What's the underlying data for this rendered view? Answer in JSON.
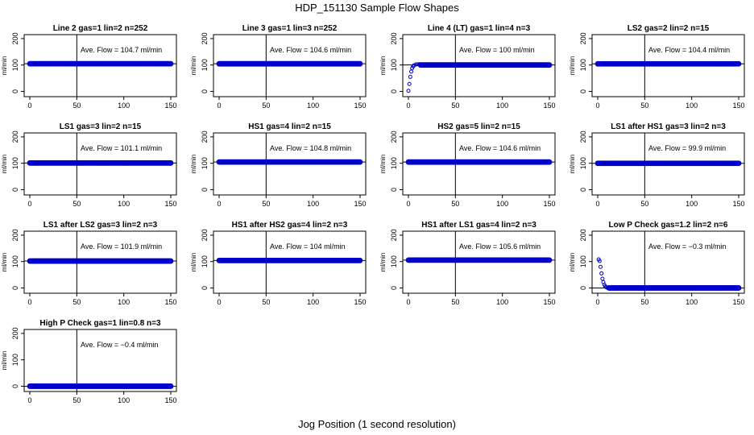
{
  "figure": {
    "title": "HDP_151130  Sample Flow Shapes",
    "xlabel": "Jog Position (1 second resolution)",
    "point_color": "#0000cc"
  },
  "chart_data": [
    {
      "type": "scatter",
      "title": "Line 2 gas=1 lin=2 n=252",
      "ylabel": "ml/min",
      "annotation": "Ave. Flow =  104.7  ml/min",
      "xlim": [
        0,
        150
      ],
      "ylim": [
        -20,
        215
      ],
      "xticks": [
        0,
        50,
        100,
        150
      ],
      "yticks": [
        0,
        100,
        200
      ],
      "vline_x": 50,
      "hline_y": 104.7,
      "series": [
        {
          "shape": "flat",
          "level": 104.7,
          "x": [
            0,
            150
          ]
        }
      ]
    },
    {
      "type": "scatter",
      "title": "Line 3 gas=1 lin=3 n=252",
      "ylabel": "ml/min",
      "annotation": "Ave. Flow =  104.6  ml/min",
      "xlim": [
        0,
        150
      ],
      "ylim": [
        -20,
        215
      ],
      "xticks": [
        0,
        50,
        100,
        150
      ],
      "yticks": [
        0,
        100,
        200
      ],
      "vline_x": 50,
      "hline_y": 104.6,
      "series": [
        {
          "shape": "flat",
          "level": 104.6,
          "x": [
            0,
            150
          ]
        }
      ]
    },
    {
      "type": "scatter",
      "title": "Line 4 (LT) gas=1 lin=4 n=3",
      "ylabel": "ml/min",
      "annotation": "Ave. Flow =  100  ml/min",
      "xlim": [
        0,
        150
      ],
      "ylim": [
        -20,
        215
      ],
      "xticks": [
        0,
        50,
        100,
        150
      ],
      "yticks": [
        0,
        100,
        200
      ],
      "vline_x": 50,
      "hline_y": 100,
      "series": [
        {
          "shape": "rise",
          "level": 100,
          "x": [
            0,
            150
          ],
          "start_points": [
            [
              0,
              2
            ],
            [
              1,
              28
            ],
            [
              2,
              55
            ],
            [
              3,
              75
            ],
            [
              4,
              88
            ],
            [
              5,
              95
            ],
            [
              6,
              99
            ],
            [
              8,
              102
            ],
            [
              10,
              103
            ],
            [
              12,
              103
            ]
          ]
        }
      ]
    },
    {
      "type": "scatter",
      "title": "LS2 gas=2 lin=2 n=15",
      "ylabel": "ml/min",
      "annotation": "Ave. Flow =  104.4  ml/min",
      "xlim": [
        0,
        150
      ],
      "ylim": [
        -20,
        215
      ],
      "xticks": [
        0,
        50,
        100,
        150
      ],
      "yticks": [
        0,
        100,
        200
      ],
      "vline_x": 50,
      "hline_y": 104.4,
      "series": [
        {
          "shape": "flat",
          "level": 104.4,
          "x": [
            0,
            150
          ]
        }
      ]
    },
    {
      "type": "scatter",
      "title": "LS1 gas=3 lin=2 n=15",
      "ylabel": "ml/min",
      "annotation": "Ave. Flow =  101.1  ml/min",
      "xlim": [
        0,
        150
      ],
      "ylim": [
        -20,
        215
      ],
      "xticks": [
        0,
        50,
        100,
        150
      ],
      "yticks": [
        0,
        100,
        200
      ],
      "vline_x": 50,
      "hline_y": 101.1,
      "series": [
        {
          "shape": "flat",
          "level": 101.1,
          "x": [
            0,
            150
          ]
        }
      ]
    },
    {
      "type": "scatter",
      "title": "HS1 gas=4 lin=2 n=15",
      "ylabel": "ml/min",
      "annotation": "Ave. Flow =  104.8  ml/min",
      "xlim": [
        0,
        150
      ],
      "ylim": [
        -20,
        215
      ],
      "xticks": [
        0,
        50,
        100,
        150
      ],
      "yticks": [
        0,
        100,
        200
      ],
      "vline_x": 50,
      "hline_y": 104.8,
      "series": [
        {
          "shape": "flat",
          "level": 104.8,
          "x": [
            0,
            150
          ]
        }
      ]
    },
    {
      "type": "scatter",
      "title": "HS2 gas=5 lin=2 n=15",
      "ylabel": "ml/min",
      "annotation": "Ave. Flow =  104.6  ml/min",
      "xlim": [
        0,
        150
      ],
      "ylim": [
        -20,
        215
      ],
      "xticks": [
        0,
        50,
        100,
        150
      ],
      "yticks": [
        0,
        100,
        200
      ],
      "vline_x": 50,
      "hline_y": 104.6,
      "series": [
        {
          "shape": "flat",
          "level": 104.6,
          "x": [
            0,
            150
          ]
        }
      ]
    },
    {
      "type": "scatter",
      "title": "LS1 after HS1 gas=3 lin=2 n=3",
      "ylabel": "ml/min",
      "annotation": "Ave. Flow =  99.9  ml/min",
      "xlim": [
        0,
        150
      ],
      "ylim": [
        -20,
        215
      ],
      "xticks": [
        0,
        50,
        100,
        150
      ],
      "yticks": [
        0,
        100,
        200
      ],
      "vline_x": 50,
      "hline_y": 99.9,
      "series": [
        {
          "shape": "flat",
          "level": 99.9,
          "x": [
            0,
            150
          ]
        }
      ]
    },
    {
      "type": "scatter",
      "title": "LS1 after LS2 gas=3 lin=2 n=3",
      "ylabel": "ml/min",
      "annotation": "Ave. Flow =  101.9  ml/min",
      "xlim": [
        0,
        150
      ],
      "ylim": [
        -20,
        215
      ],
      "xticks": [
        0,
        50,
        100,
        150
      ],
      "yticks": [
        0,
        100,
        200
      ],
      "vline_x": 50,
      "hline_y": 101.9,
      "series": [
        {
          "shape": "flat",
          "level": 101.9,
          "x": [
            0,
            150
          ]
        }
      ]
    },
    {
      "type": "scatter",
      "title": "HS1 after HS2 gas=4 lin=2 n=3",
      "ylabel": "ml/min",
      "annotation": "Ave. Flow =  104  ml/min",
      "xlim": [
        0,
        150
      ],
      "ylim": [
        -20,
        215
      ],
      "xticks": [
        0,
        50,
        100,
        150
      ],
      "yticks": [
        0,
        100,
        200
      ],
      "vline_x": 50,
      "hline_y": 104,
      "series": [
        {
          "shape": "flat",
          "level": 104,
          "x": [
            0,
            150
          ]
        }
      ]
    },
    {
      "type": "scatter",
      "title": "HS1 after LS1 gas=4 lin=2 n=3",
      "ylabel": "ml/min",
      "annotation": "Ave. Flow =  105.6  ml/min",
      "xlim": [
        0,
        150
      ],
      "ylim": [
        -20,
        215
      ],
      "xticks": [
        0,
        50,
        100,
        150
      ],
      "yticks": [
        0,
        100,
        200
      ],
      "vline_x": 50,
      "hline_y": 105.6,
      "series": [
        {
          "shape": "flat",
          "level": 105.6,
          "x": [
            0,
            150
          ]
        }
      ]
    },
    {
      "type": "scatter",
      "title": "Low P Check gas=1.2 lin=2 n=6",
      "ylabel": "ml/min",
      "annotation": "Ave. Flow =  −0.3  ml/min",
      "xlim": [
        0,
        150
      ],
      "ylim": [
        -20,
        215
      ],
      "xticks": [
        0,
        50,
        100,
        150
      ],
      "yticks": [
        0,
        100,
        200
      ],
      "vline_x": 50,
      "hline_y": -0.3,
      "series": [
        {
          "shape": "decay",
          "level": 0,
          "x": [
            0,
            150
          ],
          "start_points": [
            [
              1,
              108
            ],
            [
              2,
              102
            ],
            [
              3,
              80
            ],
            [
              4,
              55
            ],
            [
              5,
              35
            ],
            [
              6,
              22
            ],
            [
              7,
              12
            ],
            [
              8,
              6
            ],
            [
              9,
              3
            ],
            [
              10,
              1
            ],
            [
              11,
              0
            ]
          ]
        }
      ]
    },
    {
      "type": "scatter",
      "title": "High P Check gas=1 lin=0.8 n=3",
      "ylabel": "ml/min",
      "annotation": "Ave. Flow =  −0.4  ml/min",
      "xlim": [
        0,
        150
      ],
      "ylim": [
        -20,
        215
      ],
      "xticks": [
        0,
        50,
        100,
        150
      ],
      "yticks": [
        0,
        100,
        200
      ],
      "vline_x": 50,
      "hline_y": -0.4,
      "series": [
        {
          "shape": "flat",
          "level": 0,
          "x": [
            0,
            150
          ]
        }
      ]
    }
  ]
}
